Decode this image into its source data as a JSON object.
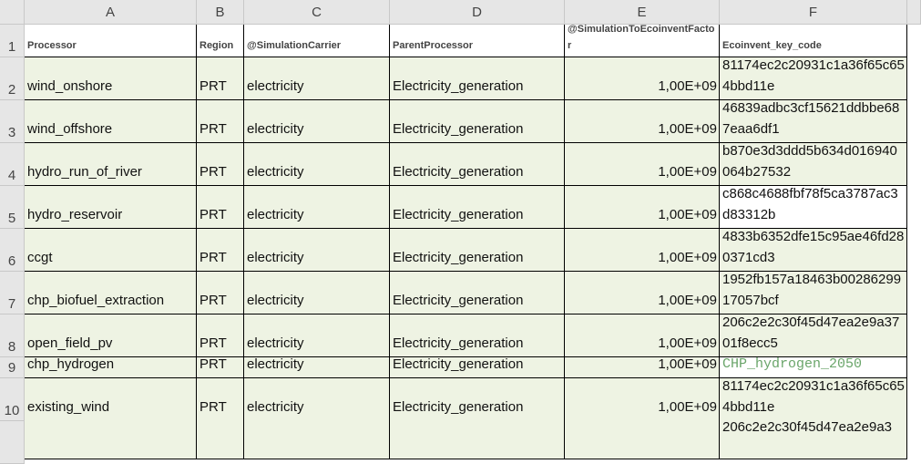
{
  "column_headers": [
    "A",
    "B",
    "C",
    "D",
    "E",
    "F"
  ],
  "rows": [
    {
      "number": "1",
      "cells": [
        "Processor",
        "Region",
        "@SimulationCarrier",
        "ParentProcessor",
        "@SimulationToEcoinventFactor",
        "Ecoinvent_key_code"
      ]
    },
    {
      "number": "2",
      "cells": [
        "wind_onshore",
        "PRT",
        "electricity",
        "Electricity_generation",
        "1,00E+09",
        "81174ec2c20931c1a36f65c654bbd11e"
      ]
    },
    {
      "number": "3",
      "cells": [
        "wind_offshore",
        "PRT",
        "electricity",
        "Electricity_generation",
        "1,00E+09",
        "46839adbc3cf15621ddbbe687eaa6df1"
      ]
    },
    {
      "number": "4",
      "cells": [
        "hydro_run_of_river",
        "PRT",
        "electricity",
        "Electricity_generation",
        "1,00E+09",
        "b870e3d3ddd5b634d016940064b27532"
      ]
    },
    {
      "number": "5",
      "cells": [
        "hydro_reservoir",
        "PRT",
        "electricity",
        "Electricity_generation",
        "1,00E+09",
        "c868c4688fbf78f5ca3787ac3d83312b"
      ]
    },
    {
      "number": "6",
      "cells": [
        "ccgt",
        "PRT",
        "electricity",
        "Electricity_generation",
        "1,00E+09",
        "4833b6352dfe15c95ae46fd280371cd3"
      ]
    },
    {
      "number": "7",
      "cells": [
        "chp_biofuel_extraction",
        "PRT",
        "electricity",
        "Electricity_generation",
        "1,00E+09",
        "1952fb157a18463b0028629917057bcf"
      ]
    },
    {
      "number": "8",
      "cells": [
        "open_field_pv",
        "PRT",
        "electricity",
        "Electricity_generation",
        "1,00E+09",
        "206c2e2c30f45d47ea2e9a3701f8ecc5"
      ]
    },
    {
      "number": "9",
      "cells": [
        "chp_hydrogen",
        "PRT",
        "electricity",
        "Electricity_generation",
        "1,00E+09",
        "CHP_hydrogen_2050"
      ]
    },
    {
      "number": "10",
      "cells": [
        "existing_wind",
        "PRT",
        "electricity",
        "Electricity_generation",
        "1,00E+09",
        "81174ec2c20931c1a36f65c654bbd11e"
      ]
    }
  ],
  "partial_row": {
    "F": "206c2e2c30f45d47ea2e9a3"
  }
}
